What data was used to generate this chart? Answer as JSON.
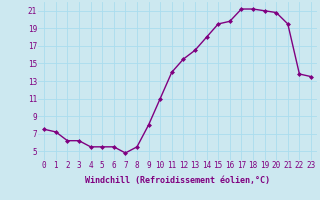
{
  "x": [
    0,
    1,
    2,
    3,
    4,
    5,
    6,
    7,
    8,
    9,
    10,
    11,
    12,
    13,
    14,
    15,
    16,
    17,
    18,
    19,
    20,
    21,
    22,
    23
  ],
  "y": [
    7.5,
    7.2,
    6.2,
    6.2,
    5.5,
    5.5,
    5.5,
    4.8,
    5.5,
    8.0,
    11.0,
    14.0,
    15.5,
    16.5,
    18.0,
    19.5,
    19.8,
    21.2,
    21.2,
    21.0,
    20.8,
    19.5,
    13.8,
    13.5
  ],
  "xlim": [
    -0.5,
    23.5
  ],
  "ylim": [
    4.0,
    22.0
  ],
  "yticks": [
    5,
    7,
    9,
    11,
    13,
    15,
    17,
    19,
    21
  ],
  "xticks": [
    0,
    1,
    2,
    3,
    4,
    5,
    6,
    7,
    8,
    9,
    10,
    11,
    12,
    13,
    14,
    15,
    16,
    17,
    18,
    19,
    20,
    21,
    22,
    23
  ],
  "xlabel": "Windchill (Refroidissement éolien,°C)",
  "line_color": "#800080",
  "marker": "D",
  "marker_size": 2.0,
  "bg_color": "#cce8f0",
  "grid_color": "#aaddee",
  "tick_fontsize": 5.5,
  "xlabel_fontsize": 6.0
}
